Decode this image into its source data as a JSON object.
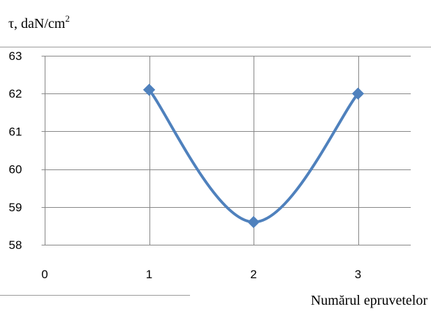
{
  "chart_data": {
    "type": "line",
    "ylabel": "τ, daN/cm",
    "ylabel_superscript": "2",
    "xlabel": "Numărul epruvetelor",
    "x": [
      1,
      2,
      3
    ],
    "series": [
      {
        "values": [
          62.1,
          58.6,
          62.0
        ],
        "color": "#4f81bd"
      }
    ],
    "xlim": [
      0,
      3
    ],
    "ylim": [
      58,
      63
    ],
    "xticks": [
      0,
      1,
      2,
      3
    ],
    "yticks": [
      58,
      59,
      60,
      61,
      62,
      63
    ],
    "grid": true,
    "smooth": true,
    "marker": "diamond",
    "legend": "none"
  }
}
